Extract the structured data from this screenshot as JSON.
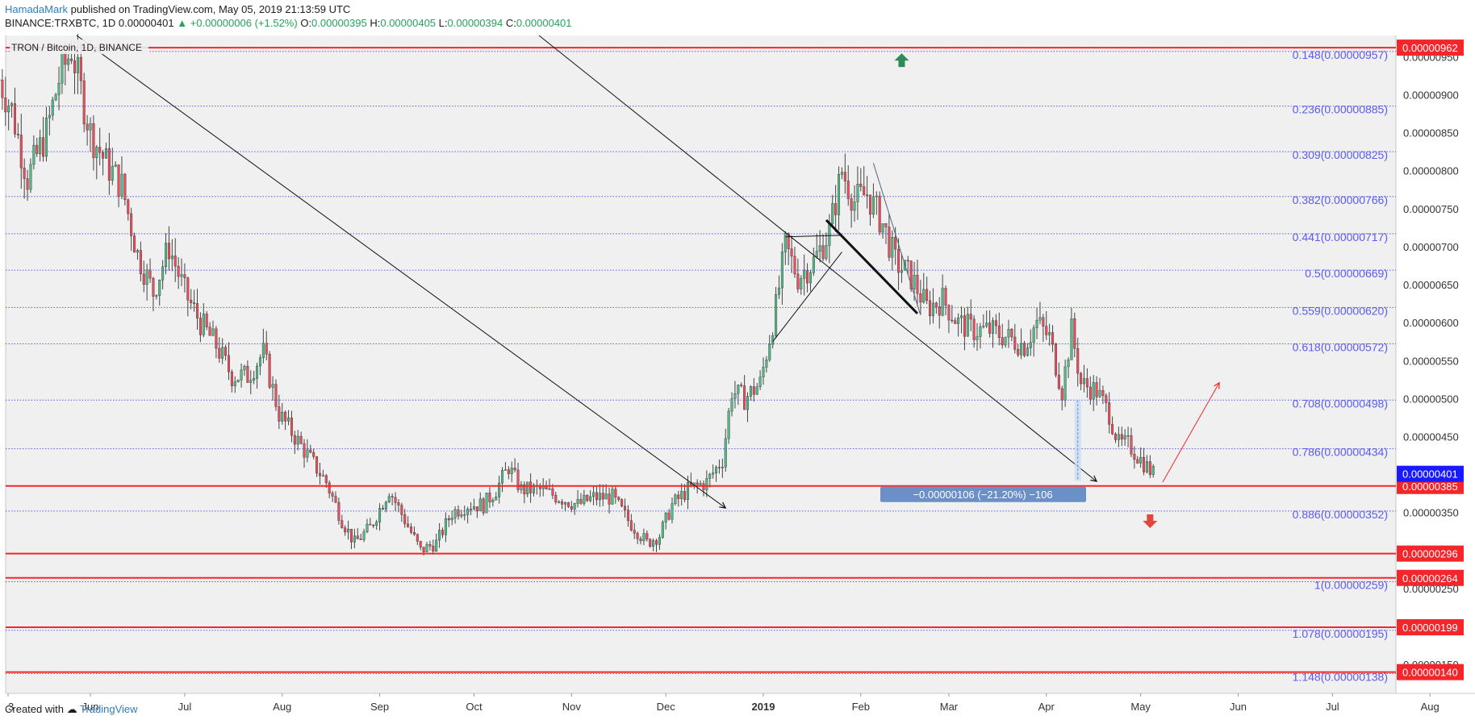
{
  "header": {
    "author": "HamadaMark",
    "published": "published on TradingView.com, May 05, 2019 21:13:59 UTC",
    "symbol": "BINANCE:TRXBTC, 1D",
    "last": "0.00000401",
    "change": "+0.00000006 (+1.52%)",
    "o_label": "O:",
    "o_val": "0.00000395",
    "h_label": "H:",
    "h_val": "0.00000405",
    "l_label": "L:",
    "l_val": "0.00000394",
    "c_label": "C:",
    "c_val": "0.00000401"
  },
  "footer": {
    "created_with": "Created with",
    "brand": "TradingView"
  },
  "colors": {
    "up": "#53b987",
    "down": "#eb4d5c",
    "fib": "#5b5bf0",
    "line_red": "#f2262b",
    "plot_bg": "#f0f0f0",
    "axis_text": "#333333",
    "price_badge_blue": "#1a1aff",
    "measure_box": "#6b8fc7"
  },
  "chart_data": {
    "type": "candlestick",
    "title": "TRON / Bitcoin, 1D, BINANCE",
    "x_labels": [
      "3",
      "Jun",
      "Jul",
      "Aug",
      "Sep",
      "Oct",
      "Nov",
      "Dec",
      "2019",
      "Feb",
      "Mar",
      "Apr",
      "May",
      "Jun",
      "Jul",
      "Aug"
    ],
    "x_label_dates": [
      "2018-05-03",
      "2018-06-01",
      "2018-07-01",
      "2018-08-01",
      "2018-09-01",
      "2018-10-01",
      "2018-11-01",
      "2018-12-01",
      "2019-01-01",
      "2019-02-01",
      "2019-03-01",
      "2019-04-01",
      "2019-05-01",
      "2019-06-01",
      "2019-07-01",
      "2019-08-01"
    ],
    "y_range": [
      1.12e-06,
      9.78e-06
    ],
    "y_ticks": [
      "0.00000950",
      "0.00000900",
      "0.00000850",
      "0.00000800",
      "0.00000750",
      "0.00000700",
      "0.00000650",
      "0.00000600",
      "0.00000550",
      "0.00000500",
      "0.00000450",
      "0.00000400",
      "0.00000350",
      "0.00000300",
      "0.00000250",
      "0.00000200",
      "0.00000150"
    ],
    "fib_levels": [
      {
        "label": "0.148(0.00000957)",
        "value": 9.57e-06
      },
      {
        "label": "0.236(0.00000885)",
        "value": 8.85e-06
      },
      {
        "label": "0.309(0.00000825)",
        "value": 8.25e-06
      },
      {
        "label": "0.382(0.00000766)",
        "value": 7.66e-06
      },
      {
        "label": "0.441(0.00000717)",
        "value": 7.17e-06
      },
      {
        "label": "0.5(0.00000669)",
        "value": 6.69e-06
      },
      {
        "label": "0.559(0.00000620)",
        "value": 6.2e-06
      },
      {
        "label": "0.618(0.00000572)",
        "value": 5.72e-06
      },
      {
        "label": "0.708(0.00000498)",
        "value": 4.98e-06
      },
      {
        "label": "0.786(0.00000434)",
        "value": 4.34e-06
      },
      {
        "label": "0.886(0.00000352)",
        "value": 3.52e-06
      },
      {
        "label": "1(0.00000259)",
        "value": 2.59e-06
      },
      {
        "label": "1.078(0.00000195)",
        "value": 1.95e-06
      },
      {
        "label": "1.148(0.00000138)",
        "value": 1.38e-06
      }
    ],
    "horizontal_lines": [
      {
        "label": "0.00000962",
        "value": 9.62e-06
      },
      {
        "label": "0.00000385",
        "value": 3.85e-06
      },
      {
        "label": "0.00000296",
        "value": 2.96e-06
      },
      {
        "label": "0.00000264",
        "value": 2.64e-06
      },
      {
        "label": "0.00000199",
        "value": 1.99e-06
      },
      {
        "label": "0.00000140",
        "value": 1.4e-06
      }
    ],
    "last_price": {
      "label": "0.00000401",
      "value": 4.01e-06
    },
    "measure_label": "−0.00000106 (−21.20%) −106",
    "price_path": [
      [
        "2018-05-03",
        9.2e-06
      ],
      [
        "2018-05-07",
        8.8e-06
      ],
      [
        "2018-05-12",
        7.9e-06
      ],
      [
        "2018-05-18",
        8.5e-06
      ],
      [
        "2018-05-22",
        9.2e-06
      ],
      [
        "2018-05-26",
        9.6e-06
      ],
      [
        "2018-06-01",
        8.5e-06
      ],
      [
        "2018-06-06",
        8.1e-06
      ],
      [
        "2018-06-11",
        7.8e-06
      ],
      [
        "2018-06-16",
        6.9e-06
      ],
      [
        "2018-06-21",
        6.4e-06
      ],
      [
        "2018-06-26",
        7e-06
      ],
      [
        "2018-07-01",
        6.4e-06
      ],
      [
        "2018-07-06",
        6e-06
      ],
      [
        "2018-07-11",
        5.7e-06
      ],
      [
        "2018-07-16",
        5.3e-06
      ],
      [
        "2018-07-21",
        5.3e-06
      ],
      [
        "2018-07-26",
        5.6e-06
      ],
      [
        "2018-07-31",
        4.8e-06
      ],
      [
        "2018-08-05",
        4.5e-06
      ],
      [
        "2018-08-10",
        4.2e-06
      ],
      [
        "2018-08-15",
        3.9e-06
      ],
      [
        "2018-08-20",
        3.4e-06
      ],
      [
        "2018-08-24",
        3.1e-06
      ],
      [
        "2018-08-29",
        3.3e-06
      ],
      [
        "2018-09-04",
        3.8e-06
      ],
      [
        "2018-09-09",
        3.4e-06
      ],
      [
        "2018-09-14",
        3e-06
      ],
      [
        "2018-09-19",
        3.1e-06
      ],
      [
        "2018-09-24",
        3.5e-06
      ],
      [
        "2018-09-29",
        3.6e-06
      ],
      [
        "2018-10-04",
        3.6e-06
      ],
      [
        "2018-10-08",
        3.8e-06
      ],
      [
        "2018-10-12",
        4.1e-06
      ],
      [
        "2018-10-16",
        3.8e-06
      ],
      [
        "2018-10-22",
        3.8e-06
      ],
      [
        "2018-10-28",
        3.7e-06
      ],
      [
        "2018-11-03",
        3.6e-06
      ],
      [
        "2018-11-08",
        3.7e-06
      ],
      [
        "2018-11-14",
        3.7e-06
      ],
      [
        "2018-11-19",
        3.4e-06
      ],
      [
        "2018-11-25",
        3.1e-06
      ],
      [
        "2018-11-29",
        3.2e-06
      ],
      [
        "2018-12-03",
        3.6e-06
      ],
      [
        "2018-12-08",
        3.8e-06
      ],
      [
        "2018-12-14",
        3.9e-06
      ],
      [
        "2018-12-19",
        4.2e-06
      ],
      [
        "2018-12-22",
        5.1e-06
      ],
      [
        "2018-12-26",
        5e-06
      ],
      [
        "2018-12-31",
        5.2e-06
      ],
      [
        "2019-01-05",
        6.2e-06
      ],
      [
        "2019-01-08",
        7e-06
      ],
      [
        "2019-01-12",
        6.6e-06
      ],
      [
        "2019-01-17",
        6.8e-06
      ],
      [
        "2019-01-22",
        7.2e-06
      ],
      [
        "2019-01-26",
        8e-06
      ],
      [
        "2019-01-30",
        7.6e-06
      ],
      [
        "2019-02-03",
        7.7e-06
      ],
      [
        "2019-02-08",
        7.3e-06
      ],
      [
        "2019-02-12",
        6.8e-06
      ],
      [
        "2019-02-17",
        6.6e-06
      ],
      [
        "2019-02-22",
        6.2e-06
      ],
      [
        "2019-02-27",
        6.3e-06
      ],
      [
        "2019-03-04",
        6e-06
      ],
      [
        "2019-03-09",
        5.9e-06
      ],
      [
        "2019-03-14",
        5.9e-06
      ],
      [
        "2019-03-20",
        5.8e-06
      ],
      [
        "2019-03-25",
        5.7e-06
      ],
      [
        "2019-03-29",
        6e-06
      ],
      [
        "2019-04-02",
        5.8e-06
      ],
      [
        "2019-04-06",
        5.1e-06
      ],
      [
        "2019-04-09",
        5.9e-06
      ],
      [
        "2019-04-12",
        5.2e-06
      ],
      [
        "2019-04-17",
        5.1e-06
      ],
      [
        "2019-04-21",
        4.8e-06
      ],
      [
        "2019-04-24",
        4.4e-06
      ],
      [
        "2019-04-27",
        4.4e-06
      ],
      [
        "2019-05-01",
        4.2e-06
      ],
      [
        "2019-05-05",
        4.01e-06
      ]
    ]
  }
}
